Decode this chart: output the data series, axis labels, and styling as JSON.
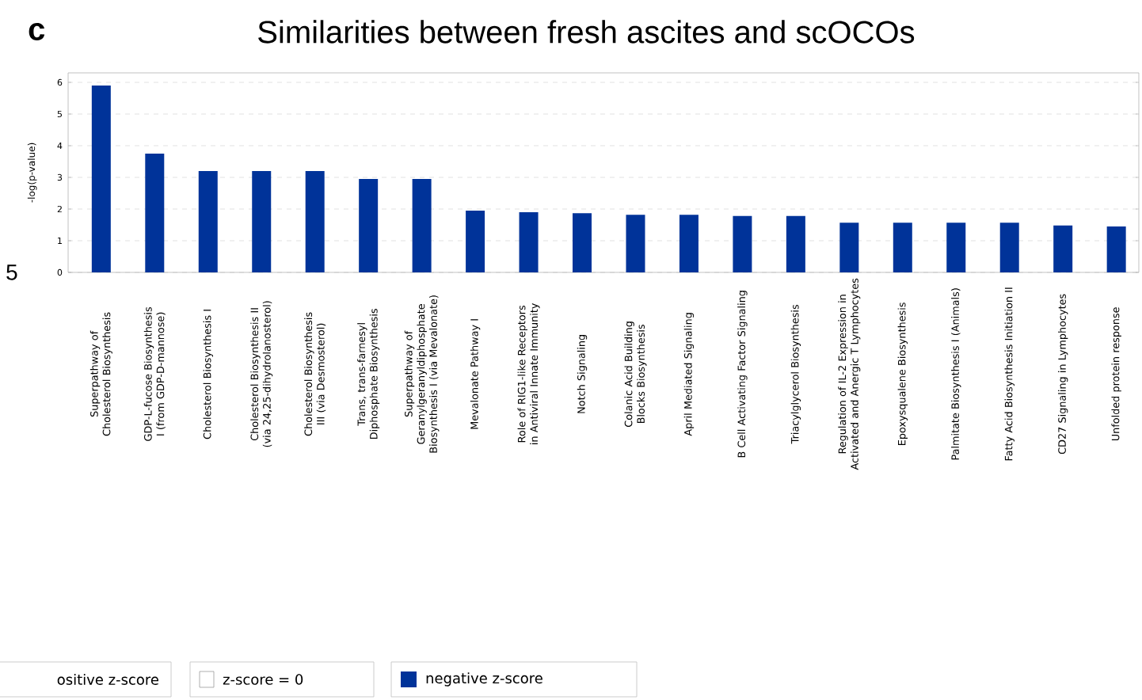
{
  "chart_data": {
    "type": "bar",
    "title": "Similarities between  fresh ascites and scOCOs",
    "ylabel": "-log(p-value)",
    "categories": [
      "Superpathway of Cholesterol Biosynthesis",
      "GDP-L-fucose Biosynthesis I (from GDP-D-mannose)",
      "Cholesterol Biosynthesis I",
      "Cholesterol Biosynthesis II (via 24,25-dihydrolanosterol)",
      "Cholesterol Biosynthesis III (via Desmosterol)",
      "Trans, trans-farnesyl Diphosphate Biosynthesis",
      "Superpathway of Geranylgeranyldiphosphate Biosynthesis I (via Mevalonate)",
      "Mevalonate Pathway I",
      "Role of RIG1-like Receptors in Antiviral Innate Immunity",
      "Notch Signaling",
      "Colanic Acid Building Blocks Biosynthesis",
      "April Mediated Signaling",
      "B Cell Activating Factor Signaling",
      "Triacylglycerol Biosynthesis",
      "Regulation of IL-2 Expression in Activated and Anergic T Lymphocytes",
      "Epoxysqualene Biosynthesis",
      "Palmitate Biosynthesis I (Animals)",
      "Fatty Acid Biosynthesis Initiation II",
      "CD27 Signaling in Lymphocytes",
      "Unfolded protein response"
    ],
    "series": [
      {
        "name": "negative z-score",
        "color": "#003399",
        "values": [
          5.9,
          3.75,
          3.2,
          3.2,
          3.2,
          2.95,
          2.95,
          1.95,
          1.9,
          1.87,
          1.82,
          1.82,
          1.78,
          1.78,
          1.57,
          1.57,
          1.57,
          1.57,
          1.48,
          1.45
        ]
      }
    ],
    "ylim": [
      0,
      6.3
    ],
    "yticks": [
      0,
      1,
      2,
      3,
      4,
      5,
      6
    ],
    "grid": "y",
    "legend": "bottom left",
    "annotations": [
      "c",
      "5",
      "ositive z-score",
      "z-score = 0"
    ]
  }
}
